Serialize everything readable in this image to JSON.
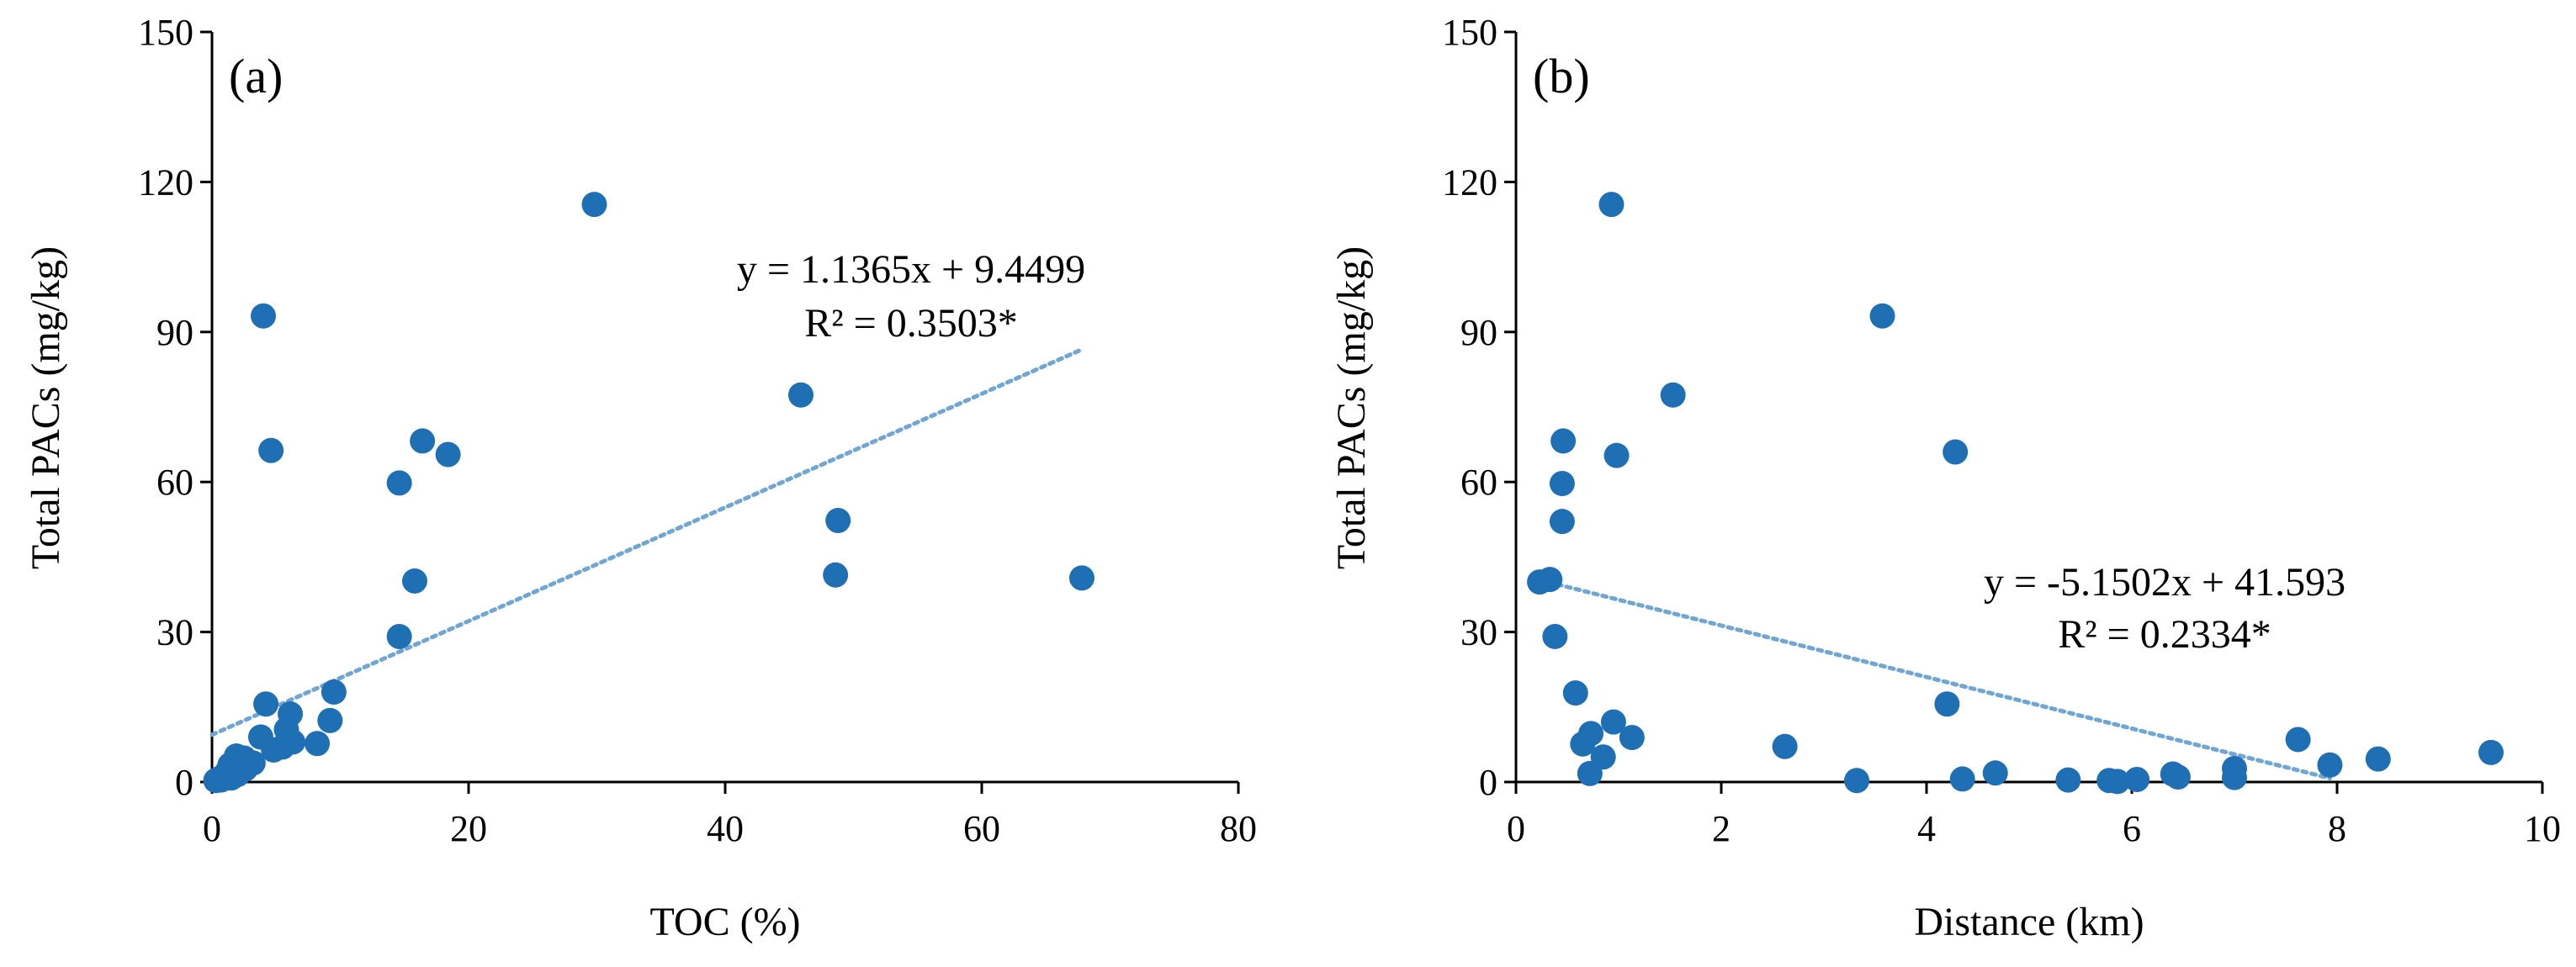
{
  "colors": {
    "marker": "#1f6fb5",
    "trendline": "#6fa6d4",
    "axis": "#000000"
  },
  "chart_data": [
    {
      "type": "scatter",
      "panel_label": "(a)",
      "title": "",
      "xlabel": "TOC (%)",
      "ylabel": "Total PACs (mg/kg)",
      "xlim": [
        0,
        80
      ],
      "ylim": [
        0,
        150
      ],
      "xticks": [
        0,
        20,
        40,
        60,
        80
      ],
      "yticks": [
        0,
        30,
        60,
        90,
        120,
        150
      ],
      "grid": false,
      "legend": "none",
      "points": [
        [
          29.8,
          115.5
        ],
        [
          4.0,
          93.2
        ],
        [
          4.6,
          66.3
        ],
        [
          16.4,
          68.2
        ],
        [
          18.4,
          65.5
        ],
        [
          14.6,
          59.8
        ],
        [
          15.8,
          40.2
        ],
        [
          14.6,
          29.1
        ],
        [
          45.9,
          77.4
        ],
        [
          48.8,
          52.3
        ],
        [
          48.6,
          41.4
        ],
        [
          67.8,
          40.8
        ],
        [
          4.2,
          15.6
        ],
        [
          9.5,
          18.0
        ],
        [
          9.2,
          12.3
        ],
        [
          6.1,
          13.6
        ],
        [
          5.8,
          10.5
        ],
        [
          3.8,
          9.0
        ],
        [
          6.3,
          8.0
        ],
        [
          8.2,
          7.7
        ],
        [
          5.5,
          7.0
        ],
        [
          4.8,
          6.4
        ],
        [
          3.2,
          3.8
        ],
        [
          2.5,
          4.8
        ],
        [
          1.9,
          5.2
        ],
        [
          2.6,
          2.6
        ],
        [
          1.4,
          3.4
        ],
        [
          1.2,
          2.1
        ],
        [
          0.9,
          1.2
        ],
        [
          2.0,
          1.5
        ],
        [
          0.5,
          0.6
        ],
        [
          1.5,
          0.8
        ],
        [
          0.3,
          0.3
        ],
        [
          2.1,
          2.9
        ],
        [
          0.7,
          0.4
        ]
      ],
      "trendline": {
        "slope": 1.1365,
        "intercept": 9.4499,
        "x_range": [
          0,
          67.8
        ],
        "style": "dotted"
      },
      "annotation": {
        "equation": "y = 1.1365x + 9.4499",
        "r2": "R² = 0.3503*"
      }
    },
    {
      "type": "scatter",
      "panel_label": "(b)",
      "title": "",
      "xlabel": "Distance (km)",
      "ylabel": "Total PACs (mg/kg)",
      "xlim": [
        0,
        10
      ],
      "ylim": [
        0,
        150
      ],
      "xticks": [
        0,
        2,
        4,
        6,
        8,
        10
      ],
      "yticks": [
        0,
        30,
        60,
        90,
        120,
        150
      ],
      "grid": false,
      "legend": "none",
      "points": [
        [
          0.93,
          115.5
        ],
        [
          3.57,
          93.2
        ],
        [
          1.53,
          77.4
        ],
        [
          4.28,
          66.0
        ],
        [
          0.46,
          68.2
        ],
        [
          0.98,
          65.3
        ],
        [
          0.45,
          59.7
        ],
        [
          0.45,
          52.1
        ],
        [
          0.23,
          40.0
        ],
        [
          0.33,
          40.5
        ],
        [
          0.38,
          29.1
        ],
        [
          0.58,
          17.8
        ],
        [
          4.2,
          15.6
        ],
        [
          0.95,
          12.0
        ],
        [
          0.73,
          9.7
        ],
        [
          1.13,
          8.9
        ],
        [
          0.65,
          7.6
        ],
        [
          0.85,
          5.0
        ],
        [
          0.72,
          1.7
        ],
        [
          2.62,
          7.1
        ],
        [
          3.32,
          0.3
        ],
        [
          4.35,
          0.6
        ],
        [
          4.67,
          1.8
        ],
        [
          5.38,
          0.4
        ],
        [
          5.78,
          0.3
        ],
        [
          5.86,
          0.1
        ],
        [
          6.05,
          0.5
        ],
        [
          6.4,
          1.6
        ],
        [
          6.45,
          1.0
        ],
        [
          7.0,
          2.7
        ],
        [
          7.0,
          0.9
        ],
        [
          7.62,
          8.5
        ],
        [
          7.93,
          3.4
        ],
        [
          8.4,
          4.6
        ],
        [
          9.5,
          5.9
        ]
      ],
      "trendline": {
        "slope": -5.1502,
        "intercept": 41.593,
        "x_range": [
          0.23,
          7.93
        ],
        "style": "dotted"
      },
      "annotation": {
        "equation": "y = -5.1502x + 41.593",
        "r2": "R² = 0.2334*"
      }
    }
  ]
}
